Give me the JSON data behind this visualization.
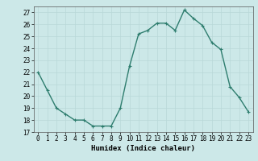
{
  "x": [
    0,
    1,
    2,
    3,
    4,
    5,
    6,
    7,
    8,
    9,
    10,
    11,
    12,
    13,
    14,
    15,
    16,
    17,
    18,
    19,
    20,
    21,
    22,
    23
  ],
  "y": [
    22,
    20.5,
    19,
    18.5,
    18,
    18,
    17.5,
    17.5,
    17.5,
    19,
    22.5,
    25.2,
    25.5,
    26.1,
    26.1,
    25.5,
    27.2,
    26.5,
    25.9,
    24.5,
    23.9,
    20.8,
    19.9,
    18.7
  ],
  "line_color": "#2e7d6e",
  "marker": "+",
  "marker_size": 3,
  "linewidth": 1.0,
  "xlabel": "Humidex (Indice chaleur)",
  "xlim": [
    -0.5,
    23.5
  ],
  "ylim": [
    17,
    27.5
  ],
  "yticks": [
    17,
    18,
    19,
    20,
    21,
    22,
    23,
    24,
    25,
    26,
    27
  ],
  "xticks": [
    0,
    1,
    2,
    3,
    4,
    5,
    6,
    7,
    8,
    9,
    10,
    11,
    12,
    13,
    14,
    15,
    16,
    17,
    18,
    19,
    20,
    21,
    22,
    23
  ],
  "bg_color": "#cce8e8",
  "grid_color_major": "#b8d8d8",
  "grid_color_minor": "#d4e8e8",
  "tick_label_fontsize": 5.5,
  "xlabel_fontsize": 6.5,
  "xlabel_fontweight": "bold"
}
